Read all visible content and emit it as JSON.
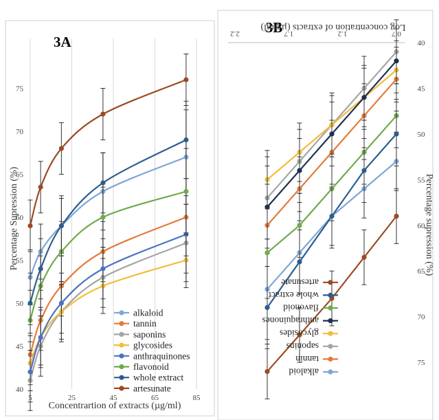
{
  "chart_data": [
    {
      "type": "line",
      "title": "3A",
      "xlabel": "Concentrartion of extracts (µg/ml)",
      "ylabel": "Percentage Supression (%)",
      "x": [
        5,
        10,
        20,
        40,
        80
      ],
      "xticks": [
        "5",
        "25",
        "45",
        "65",
        "85"
      ],
      "xlim": [
        5,
        85
      ],
      "yticks": [
        "40",
        "45",
        "50",
        "55",
        "60",
        "65",
        "70",
        "75"
      ],
      "ylim": [
        40,
        80
      ],
      "grid": "vertical",
      "legend_position": "bottom-right",
      "series": [
        {
          "name": "alkaloid",
          "color": "#7ea6d6",
          "values": [
            53,
            56,
            59,
            63,
            67
          ],
          "err": [
            3.2,
            3.2,
            3.2,
            4.5,
            5.5
          ]
        },
        {
          "name": "tannin",
          "color": "#e27b3c",
          "values": [
            44,
            48,
            52,
            56,
            60
          ],
          "err": [
            3.5,
            3.5,
            3.5,
            3.5,
            4.5
          ]
        },
        {
          "name": "saponins",
          "color": "#a5a5a5",
          "values": [
            41,
            45,
            49,
            53,
            57
          ],
          "err": [
            3.5,
            3.5,
            3.5,
            3.5,
            4.5
          ]
        },
        {
          "name": "glycosides",
          "color": "#f2bd3b",
          "values": [
            43,
            46,
            49,
            52,
            55
          ],
          "err": [
            3.2,
            3.2,
            3.2,
            3.2,
            3.2
          ]
        },
        {
          "name": "anthraquinones",
          "color": "#4b72c2",
          "values": [
            42,
            46,
            50,
            54,
            58
          ],
          "err": [
            3.5,
            3.5,
            3.5,
            3.5,
            4.5
          ]
        },
        {
          "name": "flavonoid",
          "color": "#6faa4c",
          "values": [
            48,
            52,
            56,
            60,
            63
          ],
          "err": [
            3.5,
            3.5,
            3.5,
            3.5,
            5
          ]
        },
        {
          "name": "whole extract",
          "color": "#2c5d8f",
          "values": [
            50,
            54,
            59,
            64,
            69
          ],
          "err": [
            3.5,
            3.5,
            3.5,
            3.5,
            4.5
          ]
        },
        {
          "name": "artesunate",
          "color": "#9c4a22",
          "values": [
            59,
            63.5,
            68,
            72,
            76
          ],
          "err": [
            3,
            3,
            3,
            3,
            3
          ]
        }
      ]
    },
    {
      "type": "line",
      "title": "3B",
      "orientation": "rotated-180",
      "xlabel": "Log concentration of extracts (µg/ml)",
      "ylabel": "Percentage supression (%)",
      "x": [
        0.7,
        1,
        1.3,
        1.6,
        1.9
      ],
      "xticks": [
        "0.7",
        "1.2",
        "1.7",
        "2.2"
      ],
      "xlim": [
        0.7,
        2.2
      ],
      "yticks": [
        "40",
        "45",
        "50",
        "55",
        "60",
        "65",
        "70",
        "75"
      ],
      "ylim": [
        40,
        78
      ],
      "legend_position": "bottom-left",
      "series": [
        {
          "name": "alkaloid",
          "color": "#7ea6d6",
          "values": [
            53,
            56,
            59,
            63,
            67
          ],
          "err": [
            3.2,
            3.2,
            3.2,
            4.5,
            5.5
          ]
        },
        {
          "name": "tannin",
          "color": "#e27b3c",
          "values": [
            44,
            48,
            52,
            56,
            60
          ],
          "err": [
            3.5,
            3.5,
            3.5,
            3.5,
            4.5
          ]
        },
        {
          "name": "saponins",
          "color": "#a5a5a5",
          "values": [
            41,
            45,
            49,
            53,
            57
          ],
          "err": [
            3.5,
            3.5,
            3.5,
            3.5,
            4.5
          ]
        },
        {
          "name": "glycosides",
          "color": "#f2bd3b",
          "values": [
            43,
            46,
            49,
            52,
            55
          ],
          "err": [
            3.2,
            3.2,
            3.2,
            3.2,
            3.2
          ]
        },
        {
          "name": "anthraquinones",
          "color": "#1f2f4f",
          "values": [
            42,
            46,
            50,
            54,
            58
          ],
          "err": [
            3.5,
            3.5,
            3.5,
            3.5,
            4.5
          ]
        },
        {
          "name": "flavonoid",
          "color": "#6faa4c",
          "values": [
            48,
            52,
            56,
            60,
            63
          ],
          "err": [
            3.5,
            3.5,
            3.5,
            3.5,
            5
          ]
        },
        {
          "name": "whole extract",
          "color": "#2c5d8f",
          "values": [
            50,
            54,
            59,
            64,
            69
          ],
          "err": [
            3.5,
            3.5,
            3.5,
            3.5,
            4.5
          ]
        },
        {
          "name": "artesunate",
          "color": "#9c4a22",
          "values": [
            59,
            63.5,
            68,
            72,
            76
          ],
          "err": [
            3,
            3,
            3,
            3,
            3
          ]
        }
      ]
    }
  ]
}
